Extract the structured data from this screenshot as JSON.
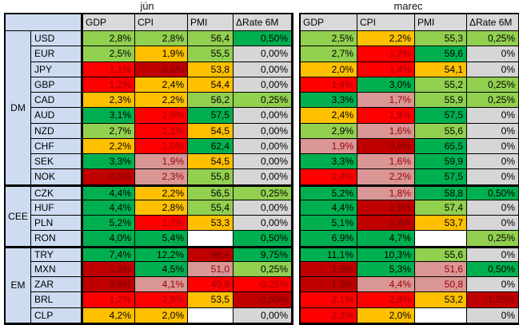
{
  "palette": {
    "darkgreen": "#00B050",
    "green": "#92D050",
    "yellow": "#FFC000",
    "red": "#FF0000",
    "darkred": "#C00000",
    "pink": "#D99694",
    "gray": "#D6D6D6",
    "white": "#FFFFFF",
    "header_gray": "#D9D9D9",
    "label_blue": "#CDDCF0"
  },
  "chart_data": {
    "type": "table",
    "subtype": "conditional-formatting-heatmap",
    "tables": [
      {
        "id": "jun",
        "title": "jún",
        "columns": [
          "GDP",
          "CPI",
          "PMI",
          "ΔRate 6M"
        ]
      },
      {
        "id": "marec",
        "title": "marec",
        "columns": [
          "GDP",
          "CPI",
          "PMI",
          "ΔRate 6M"
        ]
      }
    ],
    "column_keys": [
      "gdp",
      "cpi",
      "pmi",
      "rate"
    ],
    "groups": [
      {
        "label": "DM",
        "rows": [
          {
            "currency": "USD",
            "jun": [
              [
                "2,8%",
                "green"
              ],
              [
                "2,8%",
                "green"
              ],
              [
                "56,4",
                "green"
              ],
              [
                "0,50%",
                "darkgreen"
              ]
            ],
            "marec": [
              [
                "2,5%",
                "green"
              ],
              [
                "2,2%",
                "yellow"
              ],
              [
                "55,3",
                "green"
              ],
              [
                "0,25%",
                "green"
              ]
            ]
          },
          {
            "currency": "EUR",
            "jun": [
              [
                "2,5%",
                "green"
              ],
              [
                "1,9%",
                "yellow"
              ],
              [
                "55,5",
                "green"
              ],
              [
                "0,00%",
                "gray"
              ]
            ],
            "marec": [
              [
                "2,7%",
                "green"
              ],
              [
                "1,2%",
                "red"
              ],
              [
                "59,6",
                "darkgreen"
              ],
              [
                "0%",
                "gray"
              ]
            ]
          },
          {
            "currency": "JPY",
            "jun": [
              [
                "1,1%",
                "red"
              ],
              [
                "0,6%",
                "darkred"
              ],
              [
                "53,8",
                "yellow"
              ],
              [
                "0,00%",
                "gray"
              ]
            ],
            "marec": [
              [
                "2,0%",
                "yellow"
              ],
              [
                "1,4%",
                "red"
              ],
              [
                "54,1",
                "yellow"
              ],
              [
                "0%",
                "gray"
              ]
            ]
          },
          {
            "currency": "GBP",
            "jun": [
              [
                "1,2%",
                "red"
              ],
              [
                "2,4%",
                "yellow"
              ],
              [
                "54,4",
                "yellow"
              ],
              [
                "0,00%",
                "gray"
              ]
            ],
            "marec": [
              [
                "1,4%",
                "red"
              ],
              [
                "3,0%",
                "darkgreen"
              ],
              [
                "55,2",
                "green"
              ],
              [
                "0,25%",
                "green"
              ]
            ]
          },
          {
            "currency": "CAD",
            "jun": [
              [
                "2,3%",
                "yellow"
              ],
              [
                "2,2%",
                "yellow"
              ],
              [
                "56,2",
                "green"
              ],
              [
                "0,25%",
                "green"
              ]
            ],
            "marec": [
              [
                "3,3%",
                "darkgreen"
              ],
              [
                "1,7%",
                "pink"
              ],
              [
                "55,9",
                "green"
              ],
              [
                "0,25%",
                "green"
              ]
            ]
          },
          {
            "currency": "AUD",
            "jun": [
              [
                "3,1%",
                "darkgreen"
              ],
              [
                "1,9%",
                "red"
              ],
              [
                "57,5",
                "darkgreen"
              ],
              [
                "0,00%",
                "gray"
              ]
            ],
            "marec": [
              [
                "2,4%",
                "yellow"
              ],
              [
                "1,9%",
                "red"
              ],
              [
                "57,5",
                "darkgreen"
              ],
              [
                "0%",
                "gray"
              ]
            ]
          },
          {
            "currency": "NZD",
            "jun": [
              [
                "2,7%",
                "green"
              ],
              [
                "1,1%",
                "red"
              ],
              [
                "54,5",
                "yellow"
              ],
              [
                "0,00%",
                "gray"
              ]
            ],
            "marec": [
              [
                "2,9%",
                "green"
              ],
              [
                "1,6%",
                "pink"
              ],
              [
                "55,6",
                "green"
              ],
              [
                "0%",
                "gray"
              ]
            ]
          },
          {
            "currency": "CHF",
            "jun": [
              [
                "2,2%",
                "yellow"
              ],
              [
                "1,0%",
                "red"
              ],
              [
                "62,4",
                "darkgreen"
              ],
              [
                "0,00%",
                "gray"
              ]
            ],
            "marec": [
              [
                "1,9%",
                "pink"
              ],
              [
                "0,6%",
                "darkred"
              ],
              [
                "65,5",
                "darkgreen"
              ],
              [
                "0%",
                "gray"
              ]
            ]
          },
          {
            "currency": "SEK",
            "jun": [
              [
                "3,3%",
                "darkgreen"
              ],
              [
                "1,9%",
                "pink"
              ],
              [
                "54,5",
                "yellow"
              ],
              [
                "0,00%",
                "gray"
              ]
            ],
            "marec": [
              [
                "3,3%",
                "darkgreen"
              ],
              [
                "1,6%",
                "pink"
              ],
              [
                "59,9",
                "darkgreen"
              ],
              [
                "0%",
                "gray"
              ]
            ]
          },
          {
            "currency": "NOK",
            "jun": [
              [
                "0,3%",
                "darkred"
              ],
              [
                "2,3%",
                "pink"
              ],
              [
                "55,8",
                "green"
              ],
              [
                "0,00%",
                "gray"
              ]
            ],
            "marec": [
              [
                "1,4%",
                "red"
              ],
              [
                "2,2%",
                "pink"
              ],
              [
                "57,5",
                "darkgreen"
              ],
              [
                "0%",
                "gray"
              ]
            ]
          }
        ]
      },
      {
        "label": "CEE",
        "rows": [
          {
            "currency": "CZK",
            "jun": [
              [
                "4,4%",
                "darkgreen"
              ],
              [
                "2,2%",
                "yellow"
              ],
              [
                "56,5",
                "green"
              ],
              [
                "0,25%",
                "green"
              ]
            ],
            "marec": [
              [
                "5,2%",
                "darkgreen"
              ],
              [
                "1,8%",
                "pink"
              ],
              [
                "58,8",
                "darkgreen"
              ],
              [
                "0,50%",
                "darkgreen"
              ]
            ]
          },
          {
            "currency": "HUF",
            "jun": [
              [
                "4,4%",
                "darkgreen"
              ],
              [
                "2,8%",
                "yellow"
              ],
              [
                "55,4",
                "green"
              ],
              [
                "0,00%",
                "gray"
              ]
            ],
            "marec": [
              [
                "4,4%",
                "darkgreen"
              ],
              [
                "1,9%",
                "darkred"
              ],
              [
                "57,4",
                "green"
              ],
              [
                "0%",
                "gray"
              ]
            ]
          },
          {
            "currency": "PLN",
            "jun": [
              [
                "5,2%",
                "darkgreen"
              ],
              [
                "1,7%",
                "red"
              ],
              [
                "53,3",
                "yellow"
              ],
              [
                "0,00%",
                "gray"
              ]
            ],
            "marec": [
              [
                "5,1%",
                "darkgreen"
              ],
              [
                "1,4%",
                "darkred"
              ],
              [
                "53,7",
                "yellow"
              ],
              [
                "0%",
                "gray"
              ]
            ]
          },
          {
            "currency": "RON",
            "jun": [
              [
                "4,0%",
                "darkgreen"
              ],
              [
                "5,4%",
                "darkgreen"
              ],
              [
                "",
                "white"
              ],
              [
                "0,50%",
                "darkgreen"
              ]
            ],
            "marec": [
              [
                "6,9%",
                "darkgreen"
              ],
              [
                "4,7%",
                "darkgreen"
              ],
              [
                "",
                "white"
              ],
              [
                "0,25%",
                "green"
              ]
            ]
          }
        ]
      },
      {
        "label": "EM",
        "rows": [
          {
            "currency": "TRY",
            "jun": [
              [
                "7,4%",
                "darkgreen"
              ],
              [
                "12,2%",
                "darkgreen"
              ],
              [
                "46,4",
                "darkred"
              ],
              [
                "9,75%",
                "darkgreen"
              ]
            ],
            "marec": [
              [
                "11,1%",
                "darkgreen"
              ],
              [
                "10,3%",
                "darkgreen"
              ],
              [
                "55,6",
                "green"
              ],
              [
                "0%",
                "gray"
              ]
            ]
          },
          {
            "currency": "MXN",
            "jun": [
              [
                "1,3%",
                "darkred"
              ],
              [
                "4,5%",
                "darkgreen"
              ],
              [
                "51,0",
                "pink"
              ],
              [
                "0,25%",
                "green"
              ]
            ],
            "marec": [
              [
                "1,5%",
                "darkred"
              ],
              [
                "5,3%",
                "darkgreen"
              ],
              [
                "51,6",
                "pink"
              ],
              [
                "0,50%",
                "darkgreen"
              ]
            ]
          },
          {
            "currency": "ZAR",
            "jun": [
              [
                "0,8%",
                "darkred"
              ],
              [
                "4,1%",
                "pink"
              ],
              [
                "49,8",
                "red"
              ],
              [
                "-0,25%",
                "red"
              ]
            ],
            "marec": [
              [
                "1,5%",
                "darkred"
              ],
              [
                "4,4%",
                "pink"
              ],
              [
                "50,8",
                "pink"
              ],
              [
                "0%",
                "gray"
              ]
            ]
          },
          {
            "currency": "BRL",
            "jun": [
              [
                "1,2%",
                "red"
              ],
              [
                "2,9%",
                "red"
              ],
              [
                "53,5",
                "yellow"
              ],
              [
                "-0,50%",
                "darkred"
              ]
            ],
            "marec": [
              [
                "2,1%",
                "red"
              ],
              [
                "2,8%",
                "red"
              ],
              [
                "53,2",
                "yellow"
              ],
              [
                "-1,25%",
                "darkred"
              ]
            ]
          },
          {
            "currency": "CLP",
            "jun": [
              [
                "4,2%",
                "yellow"
              ],
              [
                "2,0%",
                "yellow"
              ],
              [
                "",
                "white"
              ],
              [
                "0,00%",
                "gray"
              ]
            ],
            "marec": [
              [
                "2,2%",
                "red"
              ],
              [
                "2,0%",
                "yellow"
              ],
              [
                "",
                "white"
              ],
              [
                "0%",
                "gray"
              ]
            ]
          }
        ]
      }
    ]
  }
}
